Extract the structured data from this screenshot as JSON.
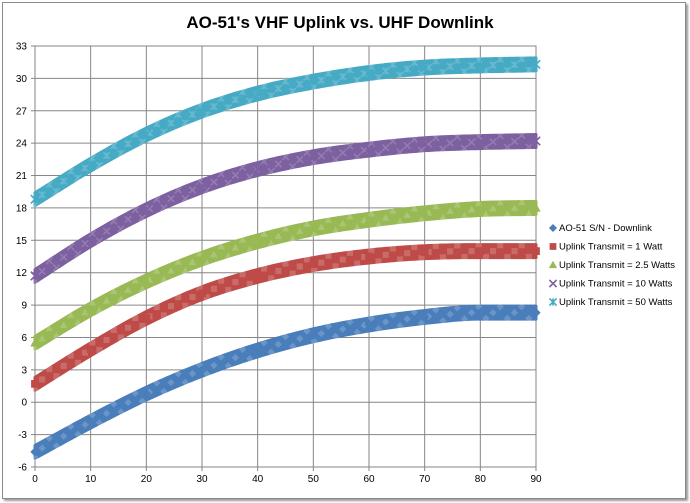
{
  "chart_data": {
    "type": "scatter",
    "title": "AO-51's VHF Uplink vs. UHF Downlink",
    "xlabel": "",
    "ylabel": "",
    "xlim": [
      0,
      90
    ],
    "ylim": [
      -6,
      33
    ],
    "x_ticks": [
      0,
      10,
      20,
      30,
      40,
      50,
      60,
      70,
      80,
      90
    ],
    "y_ticks": [
      -6,
      -3,
      0,
      3,
      6,
      9,
      12,
      15,
      18,
      21,
      24,
      27,
      30,
      33
    ],
    "grid": true,
    "legend_position": "right",
    "band_thickness": 1.2,
    "series": [
      {
        "name": "AO-51 S/N - Downlink",
        "marker": "diamond",
        "color": "#4a7ebb",
        "x": [
          0,
          10,
          20,
          30,
          40,
          50,
          60,
          70,
          80,
          90
        ],
        "y": [
          -4.6,
          -1.8,
          0.8,
          3.0,
          4.8,
          6.2,
          7.2,
          7.9,
          8.3,
          8.3
        ]
      },
      {
        "name": "Uplink Transmit = 1 Watt",
        "marker": "square",
        "color": "#be4b48",
        "x": [
          0,
          10,
          20,
          30,
          40,
          50,
          60,
          70,
          80,
          90
        ],
        "y": [
          1.7,
          4.9,
          7.8,
          10.1,
          11.7,
          12.8,
          13.5,
          13.9,
          14.0,
          14.0
        ]
      },
      {
        "name": "Uplink Transmit = 2.5 Watts",
        "marker": "triangle",
        "color": "#98b954",
        "x": [
          0,
          10,
          20,
          30,
          40,
          50,
          60,
          70,
          80,
          90
        ],
        "y": [
          5.5,
          8.6,
          11.2,
          13.3,
          14.9,
          16.1,
          16.9,
          17.5,
          17.9,
          18.0
        ]
      },
      {
        "name": "Uplink Transmit = 10 Watts",
        "marker": "x",
        "color": "#7d60a0",
        "x": [
          0,
          10,
          20,
          30,
          40,
          50,
          60,
          70,
          80,
          90
        ],
        "y": [
          11.7,
          15.0,
          17.8,
          20.0,
          21.6,
          22.7,
          23.4,
          23.9,
          24.1,
          24.2
        ]
      },
      {
        "name": "Uplink Transmit = 50 Watts",
        "marker": "star",
        "color": "#46aac5",
        "x": [
          0,
          10,
          20,
          30,
          40,
          50,
          60,
          70,
          80,
          90
        ],
        "y": [
          18.8,
          22.0,
          24.8,
          27.0,
          28.6,
          29.7,
          30.5,
          31.0,
          31.2,
          31.3
        ]
      }
    ]
  }
}
